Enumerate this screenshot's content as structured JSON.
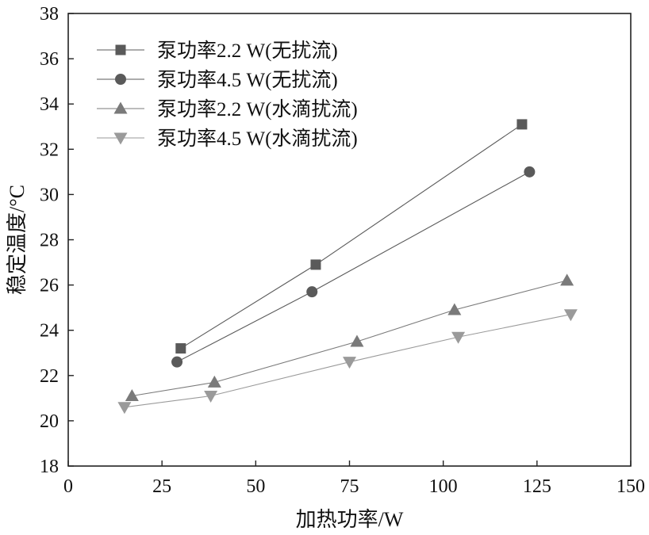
{
  "chart_data": {
    "type": "line",
    "xlabel": "加热功率/W",
    "ylabel": "稳定温度/°C",
    "xlim": [
      0,
      150
    ],
    "ylim": [
      18,
      38
    ],
    "xticks": [
      0,
      25,
      50,
      75,
      100,
      125,
      150
    ],
    "yticks": [
      18,
      20,
      22,
      24,
      26,
      28,
      30,
      32,
      34,
      36,
      38
    ],
    "grid": false,
    "legend_position": "top-left",
    "series": [
      {
        "name": "泵功率2.2 W(无扰流)",
        "marker": "square",
        "color": "#5a5a5a",
        "x": [
          30,
          66,
          121
        ],
        "y": [
          23.2,
          26.9,
          33.1
        ]
      },
      {
        "name": "泵功率4.5 W(无扰流)",
        "marker": "circle",
        "color": "#5a5a5a",
        "x": [
          29,
          65,
          123
        ],
        "y": [
          22.6,
          25.7,
          31.0
        ]
      },
      {
        "name": "泵功率2.2 W(水滴扰流)",
        "marker": "triangle-up",
        "color": "#7a7a7a",
        "x": [
          17,
          39,
          77,
          103,
          133
        ],
        "y": [
          21.1,
          21.7,
          23.5,
          24.9,
          26.2
        ]
      },
      {
        "name": "泵功率4.5 W(水滴扰流)",
        "marker": "triangle-down",
        "color": "#9a9a9a",
        "x": [
          15,
          38,
          75,
          104,
          134
        ],
        "y": [
          20.6,
          21.1,
          22.6,
          23.7,
          24.7
        ]
      }
    ]
  }
}
